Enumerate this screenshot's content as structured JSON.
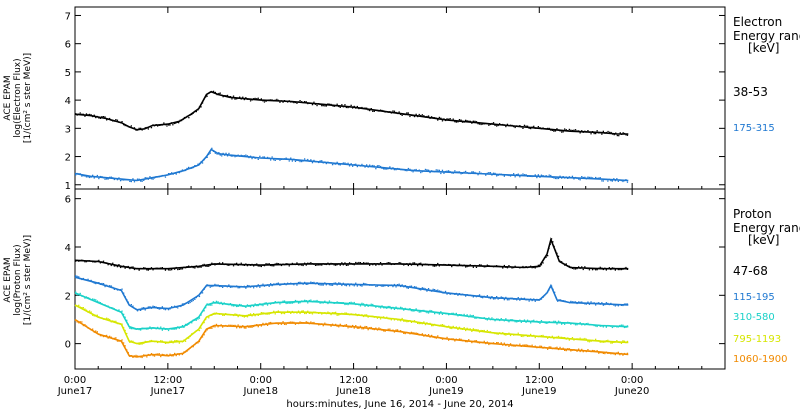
{
  "chart_data": [
    {
      "type": "scatter",
      "panel": "electron",
      "ylabel_lines": [
        "ACE EPAM",
        "log(Electron Flux)",
        "[1/(cm² s ster MeV)]"
      ],
      "ylim": [
        0.85,
        7.3
      ],
      "yticks": [
        1,
        2,
        3,
        4,
        5,
        6,
        7
      ],
      "legend_title": [
        "Electron",
        "Energy range",
        "[keV]"
      ],
      "series": [
        {
          "name": "38-53",
          "color": "#000000",
          "points": [
            [
              0,
              3.5
            ],
            [
              2,
              3.45
            ],
            [
              4,
              3.35
            ],
            [
              6,
              3.2
            ],
            [
              7,
              3.05
            ],
            [
              8,
              2.95
            ],
            [
              9,
              2.98
            ],
            [
              10,
              3.1
            ],
            [
              12,
              3.15
            ],
            [
              13.5,
              3.25
            ],
            [
              15,
              3.5
            ],
            [
              16,
              3.7
            ],
            [
              17,
              4.2
            ],
            [
              17.6,
              4.3
            ],
            [
              18.5,
              4.2
            ],
            [
              20,
              4.1
            ],
            [
              24,
              4.0
            ],
            [
              28,
              3.95
            ],
            [
              32,
              3.85
            ],
            [
              36,
              3.75
            ],
            [
              40,
              3.6
            ],
            [
              44,
              3.45
            ],
            [
              48,
              3.3
            ],
            [
              52,
              3.2
            ],
            [
              56,
              3.1
            ],
            [
              60,
              3.0
            ],
            [
              64,
              2.9
            ],
            [
              68,
              2.85
            ],
            [
              70,
              2.8
            ],
            [
              71.5,
              2.8
            ]
          ]
        },
        {
          "name": "175-315",
          "color": "#1f78d1",
          "points": [
            [
              0,
              1.4
            ],
            [
              2,
              1.3
            ],
            [
              4,
              1.25
            ],
            [
              6,
              1.2
            ],
            [
              8,
              1.15
            ],
            [
              10,
              1.25
            ],
            [
              12,
              1.35
            ],
            [
              14,
              1.5
            ],
            [
              16,
              1.7
            ],
            [
              17,
              2.0
            ],
            [
              17.6,
              2.25
            ],
            [
              18.5,
              2.1
            ],
            [
              20,
              2.05
            ],
            [
              24,
              1.95
            ],
            [
              28,
              1.9
            ],
            [
              32,
              1.8
            ],
            [
              36,
              1.7
            ],
            [
              40,
              1.6
            ],
            [
              44,
              1.5
            ],
            [
              48,
              1.45
            ],
            [
              52,
              1.4
            ],
            [
              56,
              1.35
            ],
            [
              60,
              1.3
            ],
            [
              64,
              1.25
            ],
            [
              68,
              1.2
            ],
            [
              71.5,
              1.15
            ]
          ]
        }
      ]
    },
    {
      "type": "scatter",
      "panel": "proton",
      "ylabel_lines": [
        "ACE EPAM",
        "log(Proton Flux)",
        "[1/(cm² s ster MeV)]"
      ],
      "ylim": [
        -1.05,
        6.4
      ],
      "yticks": [
        0,
        2,
        4,
        6
      ],
      "legend_title": [
        "Proton",
        "Energy range",
        "[keV]"
      ],
      "series": [
        {
          "name": "47-68",
          "color": "#000000",
          "points": [
            [
              0,
              3.45
            ],
            [
              3,
              3.4
            ],
            [
              6,
              3.2
            ],
            [
              8,
              3.1
            ],
            [
              12,
              3.1
            ],
            [
              16,
              3.2
            ],
            [
              18,
              3.3
            ],
            [
              24,
              3.25
            ],
            [
              30,
              3.3
            ],
            [
              36,
              3.3
            ],
            [
              42,
              3.3
            ],
            [
              48,
              3.25
            ],
            [
              54,
              3.2
            ],
            [
              58,
              3.15
            ],
            [
              60,
              3.2
            ],
            [
              61,
              3.7
            ],
            [
              61.5,
              4.3
            ],
            [
              62,
              3.9
            ],
            [
              62.6,
              3.4
            ],
            [
              64,
              3.15
            ],
            [
              68,
              3.1
            ],
            [
              71.5,
              3.1
            ]
          ]
        },
        {
          "name": "115-195",
          "color": "#1f78d1",
          "points": [
            [
              0,
              2.75
            ],
            [
              3,
              2.5
            ],
            [
              6,
              2.2
            ],
            [
              7,
              1.6
            ],
            [
              8,
              1.4
            ],
            [
              10,
              1.5
            ],
            [
              12,
              1.45
            ],
            [
              14,
              1.6
            ],
            [
              16,
              2.0
            ],
            [
              17,
              2.4
            ],
            [
              18,
              2.4
            ],
            [
              22,
              2.35
            ],
            [
              26,
              2.45
            ],
            [
              30,
              2.5
            ],
            [
              36,
              2.45
            ],
            [
              42,
              2.4
            ],
            [
              48,
              2.1
            ],
            [
              54,
              1.9
            ],
            [
              60,
              1.8
            ],
            [
              61,
              2.1
            ],
            [
              61.5,
              2.4
            ],
            [
              62.3,
              1.8
            ],
            [
              64,
              1.7
            ],
            [
              68,
              1.65
            ],
            [
              71.5,
              1.6
            ]
          ]
        },
        {
          "name": "310-580",
          "color": "#1ad1c8",
          "points": [
            [
              0,
              2.1
            ],
            [
              3,
              1.7
            ],
            [
              6,
              1.3
            ],
            [
              7,
              0.7
            ],
            [
              8,
              0.6
            ],
            [
              10,
              0.65
            ],
            [
              12,
              0.6
            ],
            [
              14,
              0.7
            ],
            [
              16,
              1.1
            ],
            [
              17,
              1.6
            ],
            [
              18,
              1.7
            ],
            [
              22,
              1.55
            ],
            [
              26,
              1.7
            ],
            [
              30,
              1.75
            ],
            [
              36,
              1.65
            ],
            [
              42,
              1.45
            ],
            [
              48,
              1.25
            ],
            [
              54,
              1.0
            ],
            [
              60,
              0.9
            ],
            [
              64,
              0.85
            ],
            [
              68,
              0.75
            ],
            [
              71.5,
              0.7
            ]
          ]
        },
        {
          "name": "795-1193",
          "color": "#d6e600",
          "points": [
            [
              0,
              1.6
            ],
            [
              3,
              1.1
            ],
            [
              6,
              0.8
            ],
            [
              7,
              0.1
            ],
            [
              8,
              0.0
            ],
            [
              10,
              0.1
            ],
            [
              12,
              0.05
            ],
            [
              14,
              0.1
            ],
            [
              16,
              0.6
            ],
            [
              17,
              1.1
            ],
            [
              18,
              1.25
            ],
            [
              22,
              1.15
            ],
            [
              26,
              1.3
            ],
            [
              30,
              1.3
            ],
            [
              36,
              1.2
            ],
            [
              42,
              1.0
            ],
            [
              48,
              0.7
            ],
            [
              54,
              0.45
            ],
            [
              60,
              0.3
            ],
            [
              64,
              0.2
            ],
            [
              68,
              0.1
            ],
            [
              71.5,
              0.05
            ]
          ]
        },
        {
          "name": "1060-1900",
          "color": "#f08a00",
          "points": [
            [
              0,
              1.0
            ],
            [
              3,
              0.4
            ],
            [
              6,
              0.1
            ],
            [
              7,
              -0.5
            ],
            [
              8,
              -0.55
            ],
            [
              10,
              -0.45
            ],
            [
              12,
              -0.5
            ],
            [
              14,
              -0.4
            ],
            [
              16,
              0.1
            ],
            [
              17,
              0.6
            ],
            [
              18,
              0.75
            ],
            [
              22,
              0.7
            ],
            [
              26,
              0.85
            ],
            [
              30,
              0.85
            ],
            [
              36,
              0.7
            ],
            [
              42,
              0.5
            ],
            [
              48,
              0.2
            ],
            [
              54,
              0.0
            ],
            [
              60,
              -0.15
            ],
            [
              64,
              -0.25
            ],
            [
              68,
              -0.35
            ],
            [
              71.5,
              -0.45
            ]
          ]
        }
      ]
    }
  ],
  "time_axis": {
    "range_hours": [
      0,
      84
    ],
    "ticks": [
      {
        "h": 0,
        "time": "0:00",
        "day": "June17"
      },
      {
        "h": 12,
        "time": "12:00",
        "day": "June17"
      },
      {
        "h": 24,
        "time": "0:00",
        "day": "June18"
      },
      {
        "h": 36,
        "time": "12:00",
        "day": "June18"
      },
      {
        "h": 48,
        "time": "0:00",
        "day": "June19"
      },
      {
        "h": 60,
        "time": "12:00",
        "day": "June19"
      },
      {
        "h": 72,
        "time": "0:00",
        "day": "June20"
      }
    ],
    "xlabel": "hours:minutes, June 16, 2014 - June 20, 2014"
  }
}
